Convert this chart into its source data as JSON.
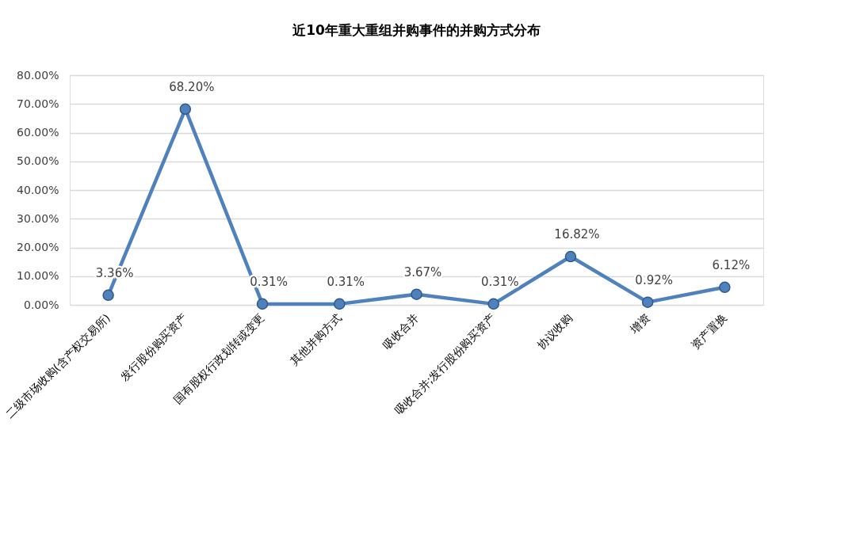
{
  "chart_data": {
    "type": "line",
    "title": "近10年重大重组并购事件的并购方式分布",
    "categories": [
      "二级市场收购(含产权交易所)",
      "发行股份购买资产",
      "国有股权行政划转或变更",
      "其他并购方式",
      "吸收合并",
      "吸收合并;发行股份购买资产",
      "协议收购",
      "增资",
      "资产置换"
    ],
    "series": [
      {
        "color": "#4f81bd",
        "values": [
          3.36,
          68.2,
          0.31,
          0.31,
          3.67,
          0.31,
          16.82,
          0.92,
          6.12
        ],
        "value_labels": [
          "3.36%",
          "68.20%",
          "0.31%",
          "0.31%",
          "3.67%",
          "0.31%",
          "16.82%",
          "0.92%",
          "6.12%"
        ]
      }
    ],
    "ylim": [
      0,
      80
    ],
    "yticks": [
      {
        "value": 0,
        "label": "0.00%"
      },
      {
        "value": 10,
        "label": "10.00%"
      },
      {
        "value": 20,
        "label": "20.00%"
      },
      {
        "value": 30,
        "label": "30.00%"
      },
      {
        "value": 40,
        "label": "40.00%"
      },
      {
        "value": 50,
        "label": "50.00%"
      },
      {
        "value": 60,
        "label": "60.00%"
      },
      {
        "value": 70,
        "label": "70.00%"
      },
      {
        "value": 80,
        "label": "80.00%"
      }
    ],
    "grid": "y",
    "legend": false,
    "marker": "circle",
    "line_style": "solid"
  }
}
